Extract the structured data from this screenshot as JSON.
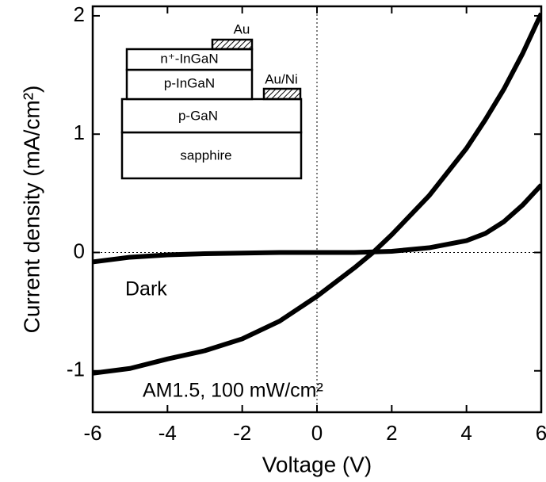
{
  "chart_data": {
    "type": "line",
    "xlabel": "Voltage   (V)",
    "ylabel": "Current density (mA/cm²)",
    "x": [
      -6,
      -5,
      -4,
      -3,
      -2,
      -1,
      0,
      1,
      1.5,
      2,
      3,
      4,
      4.5,
      5,
      5.5,
      6
    ],
    "series": [
      {
        "name": "Dark",
        "color": "#000000",
        "values": [
          -0.08,
          -0.04,
          -0.02,
          -0.01,
          -0.005,
          0,
          0,
          0,
          0.005,
          0.01,
          0.04,
          0.1,
          0.16,
          0.26,
          0.4,
          0.57
        ]
      },
      {
        "name": "AM1.5, 100 mW/cm²",
        "color": "#000000",
        "values": [
          -1.02,
          -0.98,
          -0.9,
          -0.83,
          -0.73,
          -0.58,
          -0.37,
          -0.13,
          0,
          0.15,
          0.48,
          0.88,
          1.12,
          1.38,
          1.68,
          2.02
        ]
      }
    ],
    "xlim": [
      -6,
      6
    ],
    "xticks": [
      -6,
      -4,
      -2,
      0,
      2,
      4,
      6
    ],
    "ylim": [
      -1.35,
      2.08
    ],
    "yticks": [
      -1,
      0,
      1,
      2
    ],
    "inset_labels": [
      "Au",
      "n⁺-InGaN",
      "p-InGaN",
      "Au/Ni",
      "p-GaN",
      "sapphire"
    ]
  }
}
